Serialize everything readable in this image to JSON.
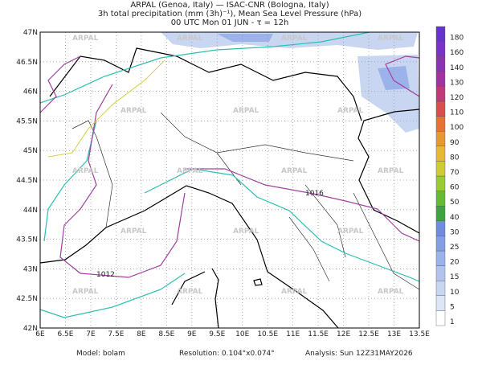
{
  "header": {
    "lines": [
      "ARPAL (Genoa, Italy)  —  ISAC-CNR (Bologna, Italy)",
      "3h total precipitation (mm (3h)⁻¹), Mean Sea Level Pressure (hPa)",
      "00 UTC Mon 01 JUN  -  τ = 12h"
    ]
  },
  "axes": {
    "lon_labels": [
      "6E",
      "6.5E",
      "7E",
      "7.5E",
      "8E",
      "8.5E",
      "9E",
      "9.5E",
      "10E",
      "10.5E",
      "11E",
      "11.5E",
      "12E",
      "12.5E",
      "13E",
      "13.5E"
    ],
    "lat_labels": [
      "47N",
      "46.5N",
      "46N",
      "45.5N",
      "45N",
      "44.5N",
      "44N",
      "43.5N",
      "43N",
      "42.5N",
      "42N"
    ]
  },
  "colorbar": {
    "labels": [
      "1",
      "5",
      "10",
      "15",
      "20",
      "25",
      "30",
      "40",
      "50",
      "60",
      "70",
      "80",
      "90",
      "100",
      "110",
      "120",
      "130",
      "140",
      "160",
      "180"
    ],
    "colors": [
      "#ffffff",
      "#dde6f7",
      "#c8d6f2",
      "#b2c4ee",
      "#9cb2ea",
      "#869fe4",
      "#708cdc",
      "#3fa33f",
      "#66bb33",
      "#99cc33",
      "#cccc33",
      "#e6b833",
      "#e69933",
      "#e67333",
      "#d94d4d",
      "#c03a7a",
      "#a0339f",
      "#8a33b3",
      "#7a33c8",
      "#6633cc"
    ]
  },
  "map": {
    "watermark": "ARPAL",
    "isobar_labels": [
      "1012",
      "1016"
    ]
  },
  "footer": {
    "model": "Model: bolam",
    "resolution": "Resolution: 0.104°x0.074°",
    "analysis": "Analysis: Sun 12Z31MAY2026"
  }
}
